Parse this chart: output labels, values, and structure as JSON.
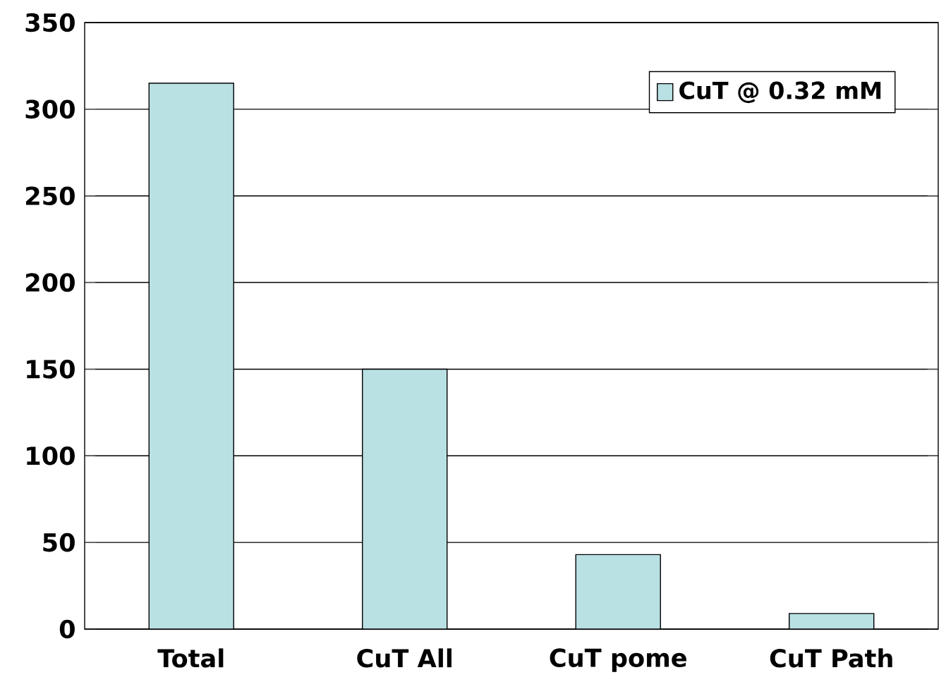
{
  "chart_data": {
    "type": "bar",
    "categories": [
      "Total",
      "CuT All",
      "CuT pome",
      "CuT Path"
    ],
    "series": [
      {
        "name": "CuT @ 0.32 mM",
        "color": "#b9e0e3",
        "values": [
          315,
          150,
          43,
          9
        ]
      }
    ],
    "ylim": [
      0,
      350
    ],
    "yticks": [
      0,
      50,
      100,
      150,
      200,
      250,
      300,
      350
    ],
    "grid": "y",
    "legend": "top right"
  }
}
